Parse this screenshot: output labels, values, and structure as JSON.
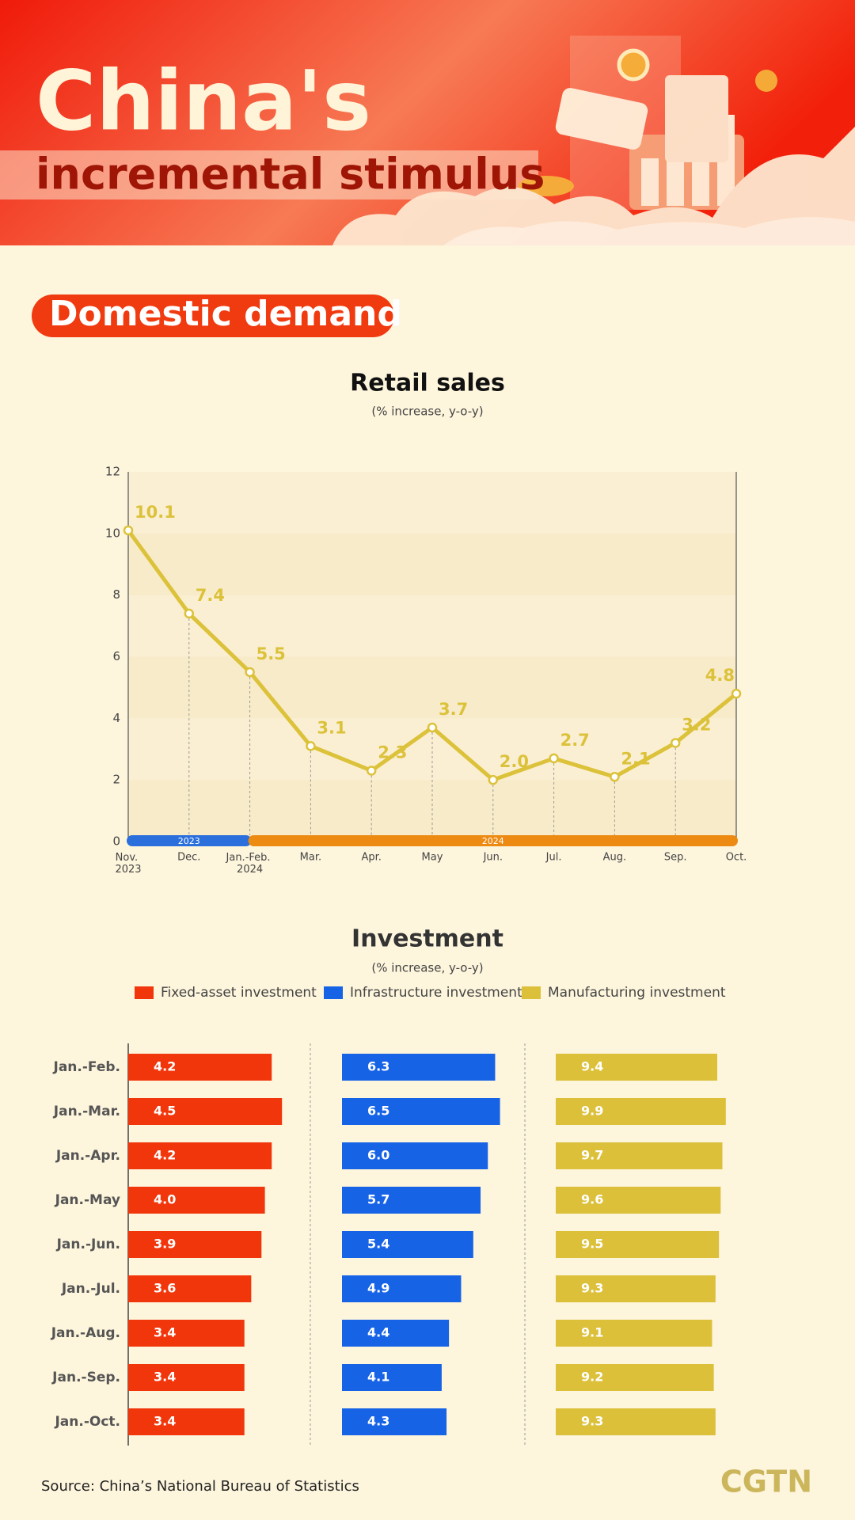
{
  "header": {
    "title": "China's",
    "subtitle": "incremental stimulus"
  },
  "section": "Domestic demand",
  "chart_data": [
    {
      "type": "line",
      "title": "Retail sales",
      "subtitle": "(% increase, y-o-y)",
      "categories": [
        "Nov. 2023",
        "Dec.",
        "Jan.-Feb. 2024",
        "Mar.",
        "Apr.",
        "May",
        "Jun.",
        "Jul.",
        "Aug.",
        "Sep.",
        "Oct."
      ],
      "values": [
        10.1,
        7.4,
        5.5,
        3.1,
        2.3,
        3.7,
        2.0,
        2.7,
        2.1,
        3.2,
        4.8
      ],
      "value_labels": [
        "10.1",
        "7.4",
        "5.5",
        "3.1",
        "2.3",
        "3.7",
        "2.0",
        "2.7",
        "2.1",
        "3.2",
        "4.8"
      ],
      "color": "#dcc23a",
      "ylim": [
        0,
        12
      ],
      "yticks": [
        0,
        2,
        4,
        6,
        8,
        10,
        12
      ],
      "year_bands": [
        {
          "label": "2023",
          "from": "Nov. 2023",
          "to": "Jan.-Feb. 2024",
          "color": "#2a6fdb"
        },
        {
          "label": "2024",
          "from": "Jan.-Feb. 2024",
          "to": "Oct.",
          "color": "#ec8a12"
        }
      ]
    },
    {
      "type": "hbar",
      "title": "Investment",
      "subtitle": "(% increase, y-o-y)",
      "categories": [
        "Jan.-Feb.",
        "Jan.-Mar.",
        "Jan.-Apr.",
        "Jan.-May",
        "Jan.-Jun.",
        "Jan.-Jul.",
        "Jan.-Aug.",
        "Jan.-Sep.",
        "Jan.-Oct."
      ],
      "series": [
        {
          "name": "Fixed-asset investment",
          "color": "#f2360c",
          "xlim": [
            0,
            5.33
          ],
          "values": [
            4.2,
            4.5,
            4.2,
            4.0,
            3.9,
            3.6,
            3.4,
            3.4,
            3.4
          ],
          "value_labels": [
            "4.2",
            "4.5",
            "4.2",
            "4.0",
            "3.9",
            "3.6",
            "3.4",
            "3.4",
            "3.4"
          ]
        },
        {
          "name": "Infrastructure investment",
          "color": "#1763e6",
          "xlim": [
            0,
            7.49
          ],
          "values": [
            6.3,
            6.5,
            6.0,
            5.7,
            5.4,
            4.9,
            4.4,
            4.1,
            4.3
          ],
          "value_labels": [
            "6.3",
            "6.5",
            "6.0",
            "5.7",
            "5.4",
            "4.9",
            "4.4",
            "4.1",
            "4.3"
          ]
        },
        {
          "name": "Manufacturing investment",
          "color": "#dcc03a",
          "xlim": [
            0,
            10.6
          ],
          "values": [
            9.4,
            9.9,
            9.7,
            9.6,
            9.5,
            9.3,
            9.1,
            9.2,
            9.3
          ],
          "value_labels": [
            "9.4",
            "9.9",
            "9.7",
            "9.6",
            "9.5",
            "9.3",
            "9.1",
            "9.2",
            "9.3"
          ]
        }
      ]
    }
  ],
  "source": "Source: China’s National Bureau of Statistics",
  "logo": "CGTN"
}
